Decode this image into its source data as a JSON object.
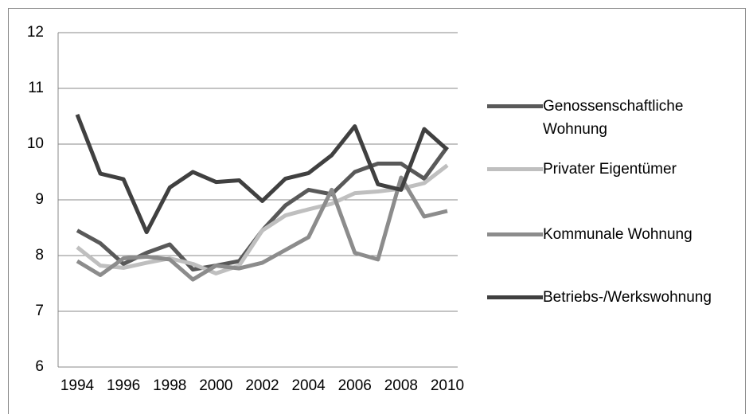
{
  "chart_data": {
    "type": "line",
    "categories": [
      "1994",
      null,
      "1996",
      null,
      "1998",
      null,
      "2000",
      null,
      "2002",
      null,
      "2004",
      null,
      "2006",
      null,
      "2008",
      null,
      "2010"
    ],
    "series": [
      {
        "name": "Genossenschaftliche Wohnung",
        "color": "#595959",
        "values": [
          8.45,
          8.22,
          7.85,
          8.05,
          8.2,
          7.75,
          7.82,
          7.9,
          8.45,
          8.9,
          9.18,
          9.1,
          9.5,
          9.65,
          9.65,
          9.38,
          9.95
        ]
      },
      {
        "name": "Privater Eigentümer",
        "color": "#bfbfbf",
        "values": [
          8.15,
          7.82,
          7.78,
          7.87,
          7.95,
          7.85,
          7.68,
          7.82,
          8.45,
          8.72,
          8.83,
          8.93,
          9.12,
          9.15,
          9.2,
          9.3,
          9.62
        ]
      },
      {
        "name": "Kommunale Wohnung",
        "color": "#8c8c8c",
        "values": [
          7.9,
          7.65,
          7.95,
          7.98,
          7.93,
          7.57,
          7.82,
          7.77,
          7.87,
          8.1,
          8.33,
          9.18,
          8.05,
          7.93,
          9.4,
          8.7,
          8.8
        ]
      },
      {
        "name": "Betriebs-/Werkswohnung",
        "color": "#404040",
        "values": [
          10.53,
          9.47,
          9.37,
          8.42,
          9.22,
          9.5,
          9.32,
          9.35,
          8.98,
          9.38,
          9.48,
          9.8,
          10.32,
          9.28,
          9.18,
          10.27,
          9.9
        ]
      }
    ],
    "ylim": [
      6,
      12
    ],
    "yticks": [
      6,
      7,
      8,
      9,
      10,
      11,
      12
    ],
    "grid": true,
    "legend": "right"
  }
}
